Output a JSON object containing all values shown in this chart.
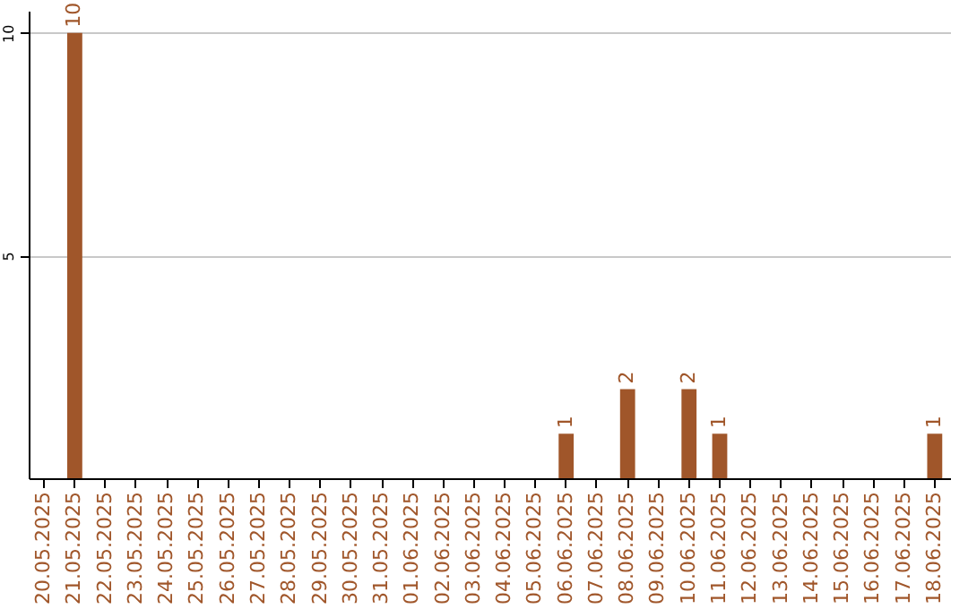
{
  "chart_data": {
    "type": "bar",
    "categories": [
      "20.05.2025",
      "21.05.2025",
      "22.05.2025",
      "23.05.2025",
      "24.05.2025",
      "25.05.2025",
      "26.05.2025",
      "27.05.2025",
      "28.05.2025",
      "29.05.2025",
      "30.05.2025",
      "31.05.2025",
      "01.06.2025",
      "02.06.2025",
      "03.06.2025",
      "04.06.2025",
      "05.06.2025",
      "06.06.2025",
      "07.06.2025",
      "08.06.2025",
      "09.06.2025",
      "10.06.2025",
      "11.06.2025",
      "12.06.2025",
      "13.06.2025",
      "14.06.2025",
      "15.06.2025",
      "16.06.2025",
      "17.06.2025",
      "18.06.2025"
    ],
    "values": [
      0,
      10,
      0,
      0,
      0,
      0,
      0,
      0,
      0,
      0,
      0,
      0,
      0,
      0,
      0,
      0,
      0,
      1,
      0,
      2,
      0,
      2,
      1,
      0,
      0,
      0,
      0,
      0,
      0,
      1
    ],
    "value_labels": [
      null,
      "10",
      null,
      null,
      null,
      null,
      null,
      null,
      null,
      null,
      null,
      null,
      null,
      null,
      null,
      null,
      null,
      "1",
      null,
      "2",
      null,
      "2",
      "1",
      null,
      null,
      null,
      null,
      null,
      null,
      "1"
    ],
    "color": "#a0562a",
    "ylim": [
      0,
      10.5
    ],
    "yticks": [
      5,
      10
    ],
    "grid": "y"
  }
}
